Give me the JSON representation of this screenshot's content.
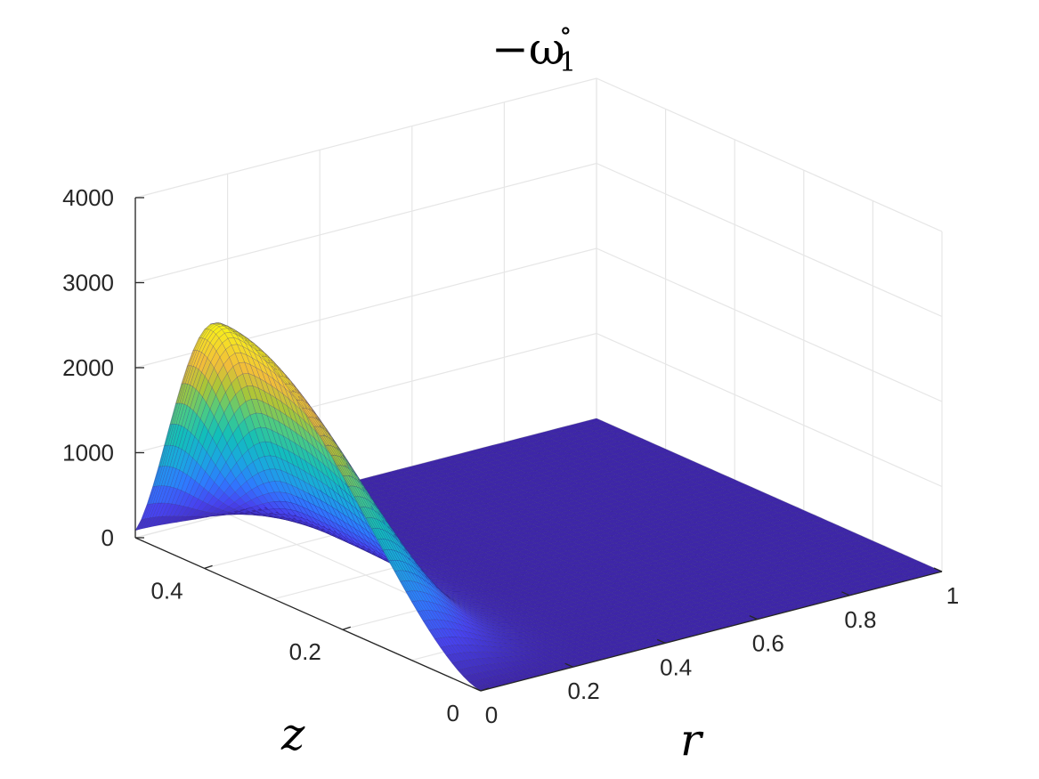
{
  "chart_data": {
    "type": "surface",
    "title": "−ω",
    "title_subscript": "1",
    "title_superscript": "∘",
    "xlabel": "r",
    "ylabel": "z",
    "zlabel": "",
    "xlim": [
      0,
      1
    ],
    "ylim": [
      0,
      0.5
    ],
    "zlim": [
      0,
      4000
    ],
    "x_ticks": [
      "0",
      "0.2",
      "0.4",
      "0.6",
      "0.8",
      "1"
    ],
    "y_ticks": [
      "0",
      "0.2",
      "0.4"
    ],
    "z_ticks": [
      "0",
      "1000",
      "2000",
      "3000",
      "4000"
    ],
    "grid": true,
    "colormap": "parula",
    "colormap_colors": [
      "#3e26a8",
      "#4743f0",
      "#2e7aff",
      "#1aa7e0",
      "#12bfb9",
      "#4bcb83",
      "#a9c637",
      "#f1bd39",
      "#f5de26",
      "#f9fb0e"
    ],
    "surface_model": {
      "description_values": "peak near r=0, z≈0.38",
      "peak_value": 2950,
      "peak_r": 0.0,
      "peak_z": 0.38,
      "radial_decay_length": 0.15,
      "z_edge_value_at_0": 0,
      "z_edge_value_at_0_5": 200
    }
  }
}
